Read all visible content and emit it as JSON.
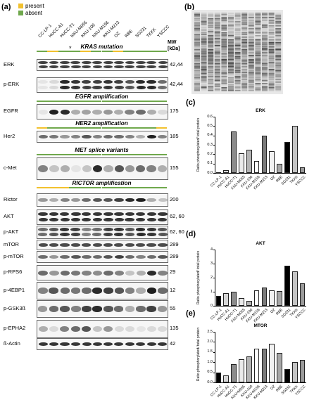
{
  "panel_a": {
    "label": "(a)",
    "legend": [
      {
        "text": "present",
        "color": "#f2c12e"
      },
      {
        "text": "absent",
        "color": "#6fa84c"
      }
    ],
    "cell_lines": [
      "CC-LP-1",
      "HuCC-A1",
      "HuCC-T1",
      "KKU-M055",
      "KKU-100",
      "KKU-M156",
      "KKU-M213",
      "OZ",
      "RBE",
      "SG231",
      "TKKK",
      "YSCCC"
    ],
    "mw_header": "MW\n[kDa]",
    "asterisk": "*",
    "sections": [
      {
        "header": "KRAS mutation",
        "status": [
          "absent",
          "present",
          "absent",
          "absent",
          "present",
          "absent",
          "absent",
          "present",
          "absent",
          "absent",
          "absent",
          "absent"
        ],
        "rows": [
          {
            "label": "ERK",
            "mw": "42,44"
          },
          {
            "label": "p-ERK",
            "mw": "42,44"
          }
        ]
      },
      {
        "header": "EGFR amplification",
        "status": [
          "absent",
          "absent",
          "absent",
          "absent",
          "absent",
          "absent",
          "absent",
          "absent",
          "absent",
          "absent",
          "absent",
          "absent"
        ],
        "rows": [
          {
            "label": "EGFR",
            "mw": "175"
          }
        ]
      },
      {
        "header": "HER2 amplification",
        "status": [
          "present",
          "absent",
          "absent",
          "absent",
          "absent",
          "absent",
          "absent",
          "absent",
          "absent",
          "absent",
          "absent",
          "present"
        ],
        "rows": [
          {
            "label": "Her2",
            "mw": "185"
          }
        ]
      },
      {
        "header": "MET splice variants",
        "status": [
          "absent",
          "absent",
          "absent",
          "absent",
          "absent",
          "absent",
          "absent",
          "absent",
          "absent",
          "absent",
          "absent",
          "absent"
        ],
        "rows": [
          {
            "label": "c-Met",
            "mw": "155"
          }
        ]
      },
      {
        "header": "RICTOR amplification",
        "status": [
          "present",
          "present",
          "present",
          "absent",
          "absent",
          "absent",
          "absent",
          "absent",
          "absent",
          "absent",
          "absent",
          "absent"
        ],
        "rows": [
          {
            "label": "Rictor",
            "mw": "200"
          },
          {
            "label": "AKT",
            "mw": "62, 60"
          },
          {
            "label": "p-AKT",
            "mw": "62, 60"
          },
          {
            "label": "mTOR",
            "mw": "289"
          },
          {
            "label": "p-mTOR",
            "mw": "289"
          },
          {
            "label": "p-RPS6",
            "mw": "29"
          },
          {
            "label": "p-4EBP1",
            "mw": "12"
          },
          {
            "label": "p-GSK3ß",
            "mw": "55"
          },
          {
            "label": "p-EPHA2",
            "mw": "135"
          },
          {
            "label": "ß-Actin",
            "mw": "42"
          }
        ]
      }
    ]
  },
  "panel_b": {
    "label": "(b)"
  },
  "chart_data": [
    {
      "panel": "(c)",
      "type": "bar",
      "title": "ERK",
      "ylabel": "Ratio phosphorylated/ total protein",
      "ylim": [
        0,
        0.6
      ],
      "yticks": [
        "0.0",
        "0.1",
        "0.2",
        "0.3",
        "0.4",
        "0.5",
        "0.6"
      ],
      "categories": [
        "CC-LP-1",
        "HuCC-A1",
        "HuCC-T1",
        "KKU-M055",
        "KKU-100",
        "KKU-M156",
        "KKU-M213",
        "OZ",
        "RBE",
        "SG231",
        "TKKK",
        "YSCCC"
      ],
      "values": [
        0.005,
        0.03,
        0.44,
        0.21,
        0.25,
        0.13,
        0.4,
        0.23,
        0.1,
        0.33,
        0.5,
        0.06
      ],
      "colors": [
        "#000000",
        "#d6d6d6",
        "#8c8c8c",
        "#ebebeb",
        "#b4b4b4",
        "#ffffff",
        "#7a7a7a",
        "#f2f2f2",
        "#a8a8a8",
        "#000000",
        "#c4c4c4",
        "#9a9a9a"
      ]
    },
    {
      "panel": "(d)",
      "type": "bar",
      "title": "AKT",
      "ylabel": "Ratio phosphorylated/ total protein",
      "ylim": [
        0,
        4
      ],
      "yticks": [
        "0",
        "1",
        "2",
        "3",
        "4"
      ],
      "categories": [
        "CC-LP-1",
        "HuCC-A1",
        "HuCC-T1",
        "KKU-M055",
        "KKU-100",
        "KKU-M156",
        "KKU-M213",
        "OZ",
        "RBE",
        "SG231",
        "TKKK",
        "YSCCC"
      ],
      "values": [
        0.7,
        0.9,
        1.0,
        0.55,
        0.35,
        1.1,
        1.3,
        1.1,
        1.05,
        2.85,
        2.45,
        1.6
      ],
      "colors": [
        "#000000",
        "#d6d6d6",
        "#8c8c8c",
        "#ebebeb",
        "#b4b4b4",
        "#ffffff",
        "#7a7a7a",
        "#f2f2f2",
        "#a8a8a8",
        "#000000",
        "#c4c4c4",
        "#9a9a9a"
      ]
    },
    {
      "panel": "(e)",
      "type": "bar",
      "title": "MTOR",
      "ylabel": "Ratio phosphorylated/ total protein",
      "ylim": [
        0,
        2.5
      ],
      "yticks": [
        "0.0",
        "0.5",
        "1.0",
        "1.5",
        "2.0",
        "2.5"
      ],
      "categories": [
        "CC-LP-1",
        "HuCC-A1",
        "HuCC-T1",
        "KKU-M055",
        "KKU-100",
        "KKU-M156",
        "KKU-M213",
        "OZ",
        "RBE",
        "SG231",
        "TKKK",
        "YSCCC"
      ],
      "values": [
        0.5,
        0.35,
        0.9,
        1.15,
        1.3,
        1.65,
        1.65,
        1.9,
        1.45,
        0.65,
        1.0,
        1.1
      ],
      "colors": [
        "#000000",
        "#d6d6d6",
        "#8c8c8c",
        "#ebebeb",
        "#b4b4b4",
        "#ffffff",
        "#7a7a7a",
        "#f2f2f2",
        "#a8a8a8",
        "#000000",
        "#c4c4c4",
        "#9a9a9a"
      ]
    }
  ]
}
